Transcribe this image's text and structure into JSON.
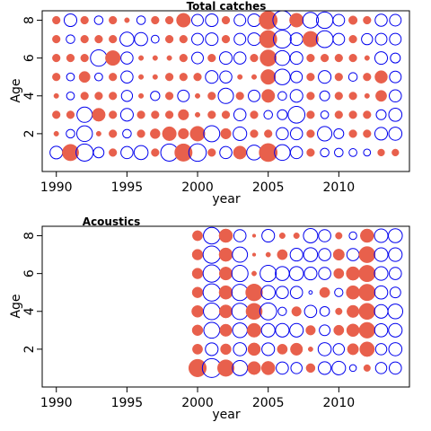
{
  "chart_data": [
    {
      "type": "scatter",
      "title": "Total catches",
      "xlabel": "year",
      "ylabel": "Age",
      "xlim": [
        1989,
        2015
      ],
      "ylim": [
        0,
        8.5
      ],
      "xticks": [
        "1990",
        "1995",
        "2000",
        "2005",
        "2010"
      ],
      "yticks": [
        "2",
        "4",
        "6",
        "8"
      ],
      "legend": "none",
      "colors": {
        "positive": "#e8604c",
        "negative": "#0000ee"
      },
      "years": [
        1990,
        1991,
        1992,
        1993,
        1994,
        1995,
        1996,
        1997,
        1998,
        1999,
        2000,
        2001,
        2002,
        2003,
        2004,
        2005,
        2006,
        2007,
        2008,
        2009,
        2010,
        2011,
        2012,
        2013,
        2014
      ],
      "ages": [
        1,
        2,
        3,
        4,
        5,
        6,
        7,
        8
      ],
      "residuals": {
        "8": [
          0.5,
          -1.3,
          0.5,
          -0.6,
          0.5,
          0.2,
          -0.6,
          0.5,
          0.5,
          1.6,
          -1.1,
          -1.3,
          0.5,
          -1.1,
          -1.3,
          2.7,
          -2.9,
          1.6,
          -2.0,
          -2.2,
          -1.1,
          0.6,
          0.5,
          -1.2,
          -1.1
        ],
        "7": [
          0.5,
          -0.6,
          0.5,
          0.5,
          0.5,
          -1.6,
          -1.4,
          -0.5,
          0.5,
          0.5,
          -1.1,
          -1.3,
          0.5,
          -1.1,
          -1.3,
          2.5,
          -2.6,
          -1.3,
          2.0,
          -2.3,
          -1.1,
          0.5,
          -1.0,
          -1.1,
          -1.1
        ],
        "6": [
          0.5,
          0.5,
          0.5,
          -2.2,
          1.8,
          -1.2,
          0.2,
          0.2,
          0.2,
          0.5,
          -1.1,
          0.5,
          -1.3,
          -1.2,
          0.5,
          2.2,
          -1.8,
          -1.3,
          0.5,
          0.5,
          0.5,
          0.5,
          0.2,
          -1.3,
          -0.8
        ],
        "5": [
          0.5,
          -0.5,
          1.0,
          -0.5,
          0.5,
          -1.2,
          0.2,
          0.2,
          0.5,
          0.5,
          0.5,
          -1.3,
          -1.2,
          0.2,
          0.2,
          1.8,
          -2.0,
          -1.1,
          0.5,
          -1.3,
          0.5,
          -0.6,
          0.5,
          1.3,
          -1.1
        ],
        "4": [
          0.2,
          -0.5,
          0.5,
          0.5,
          0.5,
          -1.0,
          0.2,
          -0.7,
          0.5,
          -1.1,
          0.2,
          0.5,
          -1.9,
          0.5,
          -1.1,
          1.4,
          -0.6,
          -1.3,
          0.5,
          -0.8,
          0.5,
          0.5,
          0.2,
          1.0,
          -1.2
        ],
        "3": [
          0.5,
          0.5,
          -1.9,
          1.4,
          0.5,
          -1.3,
          0.5,
          0.5,
          0.5,
          0.9,
          0.2,
          0.5,
          0.5,
          -1.2,
          0.5,
          -0.6,
          -0.8,
          -2.3,
          0.5,
          -0.5,
          0.5,
          0.5,
          0.5,
          -0.8,
          -1.4
        ],
        "2": [
          0.2,
          -0.6,
          -2.0,
          0.2,
          0.5,
          -0.6,
          0.5,
          0.8,
          1.6,
          0.9,
          1.8,
          -2.1,
          0.9,
          -1.5,
          0.5,
          0.5,
          -1.2,
          -1.2,
          0.5,
          -1.7,
          -0.8,
          0.5,
          0.5,
          -1.3,
          -1.4
        ],
        "1": [
          -1.3,
          2.2,
          -2.4,
          -0.9,
          0.5,
          -1.2,
          -1.6,
          0.5,
          -2.4,
          2.5,
          -2.5,
          0.5,
          -1.2,
          1.4,
          -1.8,
          2.7,
          -2.0,
          -1.2,
          0.5,
          -0.6,
          -0.6,
          -0.5,
          -0.4,
          0.4,
          0.4
        ]
      }
    },
    {
      "type": "scatter",
      "title": "Acoustics",
      "xlabel": "year",
      "ylabel": "Age",
      "xlim": [
        1989,
        2015
      ],
      "ylim": [
        0,
        8.5
      ],
      "xticks": [
        "1990",
        "1995",
        "2000",
        "2005",
        "2010"
      ],
      "yticks": [
        "2",
        "4",
        "6",
        "8"
      ],
      "legend": "none",
      "colors": {
        "positive": "#e8604c",
        "negative": "#0000ee"
      },
      "years": [
        2000,
        2001,
        2002,
        2003,
        2004,
        2005,
        2006,
        2007,
        2008,
        2009,
        2010,
        2011,
        2012,
        2013,
        2014
      ],
      "ages": [
        1,
        2,
        3,
        4,
        5,
        6,
        7,
        8
      ],
      "residuals": {
        "8": [
          0.9,
          -2.4,
          1.6,
          -1.3,
          0.1,
          -1.4,
          0.3,
          0.3,
          -1.8,
          -1.3,
          0.4,
          -0.5,
          1.6,
          -1.6,
          -1.7
        ],
        "7": [
          1.0,
          -2.6,
          1.6,
          -2.0,
          0.1,
          0.2,
          0.9,
          -1.4,
          -1.7,
          -1.3,
          1.1,
          -1.3,
          2.3,
          -1.6,
          -1.6
        ],
        "6": [
          1.0,
          -2.6,
          1.5,
          -2.3,
          0.2,
          -2.3,
          -1.7,
          -1.7,
          -1.4,
          -1.3,
          0.9,
          1.6,
          2.4,
          -1.6,
          -1.3
        ],
        "5": [
          1.0,
          -2.6,
          1.6,
          -2.3,
          2.5,
          -1.7,
          -1.3,
          -1.3,
          -0.1,
          0.9,
          -0.6,
          1.6,
          2.4,
          -1.5,
          -1.0
        ],
        "4": [
          1.2,
          -2.4,
          1.5,
          -2.3,
          2.3,
          -2.5,
          -0.6,
          0.8,
          -1.3,
          -0.8,
          0.4,
          1.3,
          2.3,
          -1.6,
          -1.9
        ],
        "3": [
          1.0,
          -2.2,
          1.3,
          -1.9,
          1.7,
          -1.6,
          -1.6,
          -1.6,
          0.8,
          -1.0,
          0.9,
          1.4,
          2.2,
          -1.5,
          -1.6
        ],
        "2": [
          0.9,
          -1.4,
          1.0,
          -1.5,
          1.4,
          -1.4,
          0.9,
          1.3,
          0.2,
          -1.5,
          -1.1,
          1.1,
          1.9,
          -1.1,
          -1.5
        ],
        "1": [
          2.7,
          -3.1,
          2.4,
          -2.0,
          1.5,
          1.6,
          -1.3,
          -1.1,
          0.7,
          -1.4,
          -1.6,
          -0.4,
          0.4,
          -1.1,
          -1.3
        ]
      }
    }
  ]
}
